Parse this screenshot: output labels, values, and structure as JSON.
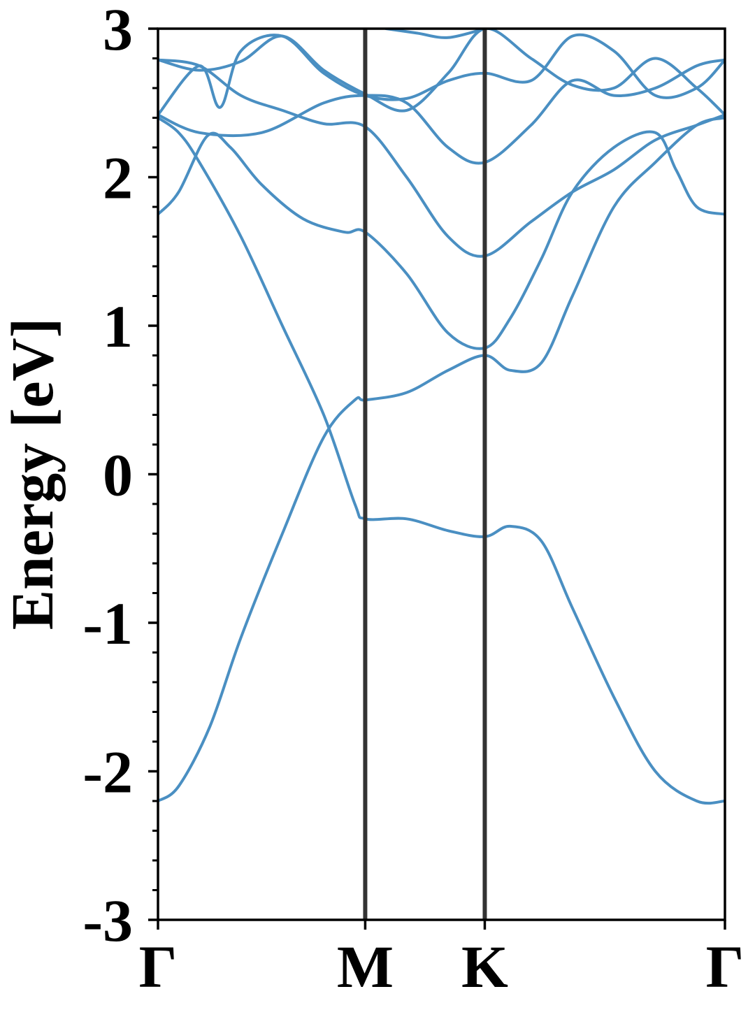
{
  "chart_data": {
    "type": "line",
    "ylabel": "Energy [eV]",
    "xlabel": "",
    "ylim": [
      -3,
      3
    ],
    "yticks": [
      {
        "value": 3,
        "label": "3"
      },
      {
        "value": 2,
        "label": "2"
      },
      {
        "value": 1,
        "label": "1"
      },
      {
        "value": 0,
        "label": "0"
      },
      {
        "value": -1,
        "label": "-1"
      },
      {
        "value": -2,
        "label": "-2"
      },
      {
        "value": -3,
        "label": "-3"
      }
    ],
    "yminor_step": 0.2,
    "xlim": [
      0,
      2.736
    ],
    "kpoints": [
      {
        "label": "Γ",
        "x": 0
      },
      {
        "label": "M",
        "x": 1
      },
      {
        "label": "K",
        "x": 1.577
      },
      {
        "label": "Γ",
        "x": 2.736
      }
    ],
    "grid": false,
    "series": [
      {
        "x": [
          0,
          0.1,
          0.25,
          0.4,
          0.6,
          0.8,
          0.95,
          1.0,
          1.2,
          1.4,
          1.577,
          1.7,
          1.85,
          2.0,
          2.2,
          2.4,
          2.6,
          2.736
        ],
        "y": [
          -2.2,
          -2.1,
          -1.7,
          -1.1,
          -0.4,
          0.25,
          0.5,
          0.5,
          0.55,
          0.7,
          0.8,
          0.7,
          0.75,
          1.2,
          1.8,
          2.1,
          2.35,
          2.4
        ]
      },
      {
        "x": [
          0,
          0.1,
          0.2,
          0.4,
          0.6,
          0.8,
          0.95,
          1.0,
          1.2,
          1.4,
          1.577,
          1.7,
          1.85,
          2.0,
          2.2,
          2.4,
          2.6,
          2.736
        ],
        "y": [
          2.4,
          2.3,
          2.1,
          1.6,
          1.0,
          0.4,
          -0.2,
          -0.3,
          -0.3,
          -0.38,
          -0.42,
          -0.35,
          -0.45,
          -0.9,
          -1.5,
          -2.0,
          -2.2,
          -2.2
        ]
      },
      {
        "x": [
          0,
          0.1,
          0.24,
          0.35,
          0.5,
          0.7,
          0.9,
          1.0,
          1.2,
          1.4,
          1.577,
          1.7,
          1.85,
          2.0,
          2.2,
          2.4,
          2.5,
          2.6,
          2.736
        ],
        "y": [
          1.75,
          1.9,
          2.28,
          2.2,
          1.95,
          1.72,
          1.63,
          1.63,
          1.35,
          0.95,
          0.85,
          1.05,
          1.45,
          1.9,
          2.2,
          2.3,
          2.05,
          1.8,
          1.75
        ]
      },
      {
        "x": [
          0,
          0.2,
          0.5,
          0.8,
          1.0,
          1.2,
          1.4,
          1.577,
          1.8,
          2.0,
          2.2,
          2.4,
          2.6,
          2.736
        ],
        "y": [
          2.42,
          2.3,
          2.3,
          2.5,
          2.55,
          2.5,
          2.2,
          2.1,
          2.35,
          2.65,
          2.55,
          2.6,
          2.75,
          2.79
        ]
      },
      {
        "x": [
          0,
          0.2,
          0.4,
          0.6,
          0.8,
          1.0,
          1.2,
          1.4,
          1.577,
          1.8,
          2.0,
          2.2,
          2.4,
          2.6,
          2.736
        ],
        "y": [
          2.79,
          2.75,
          2.55,
          2.45,
          2.36,
          2.34,
          2.0,
          1.6,
          1.47,
          1.7,
          1.9,
          2.05,
          2.25,
          2.35,
          2.42
        ]
      },
      {
        "x": [
          0,
          0.2,
          0.3,
          0.4,
          0.6,
          0.8,
          1.0,
          1.2,
          1.4,
          1.577,
          1.8,
          2.0,
          2.2,
          2.4,
          2.6,
          2.736
        ],
        "y": [
          2.42,
          2.75,
          2.47,
          2.85,
          2.95,
          2.7,
          2.55,
          2.53,
          2.65,
          2.7,
          2.65,
          2.95,
          2.85,
          2.55,
          2.6,
          2.79
        ]
      },
      {
        "x": [
          0,
          0.2,
          0.4,
          0.6,
          0.8,
          1.0,
          1.2,
          1.4,
          1.577,
          1.8,
          2.0,
          2.2,
          2.4,
          2.6,
          2.736
        ],
        "y": [
          2.79,
          2.72,
          2.78,
          2.95,
          2.72,
          2.56,
          2.45,
          2.7,
          3.0,
          2.8,
          2.62,
          2.6,
          2.8,
          2.6,
          2.42
        ]
      },
      {
        "x": [
          1.1,
          1.25,
          1.4,
          1.577
        ],
        "y": [
          3.0,
          2.97,
          2.94,
          3.0
        ]
      }
    ]
  }
}
